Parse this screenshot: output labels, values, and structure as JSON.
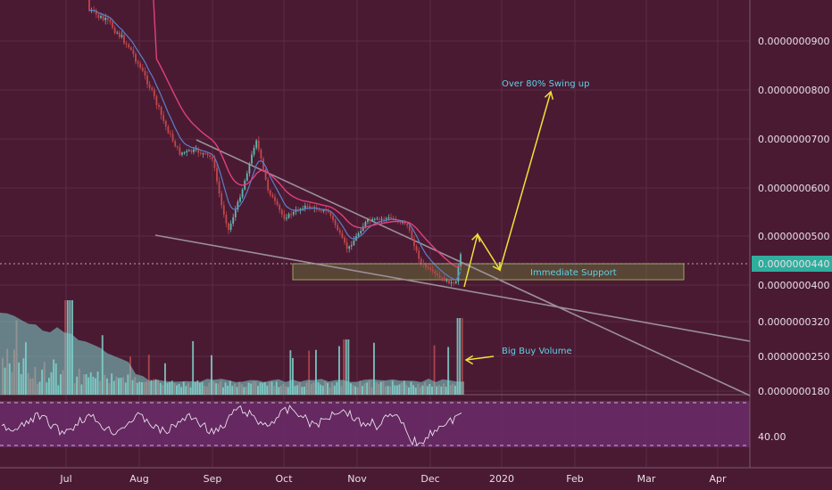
{
  "colors": {
    "background": "#4a1a33",
    "grid": "#5c2a44",
    "up": "#63b7ad",
    "down": "#c0474a",
    "volume_up": "#7fd6cd",
    "volume_down": "#b84a4e",
    "ma_fast": "#5b7fc9",
    "ma_slow": "#e0417a",
    "trendline": "#9a9098",
    "annotation": "#f1e13a",
    "annotation_text": "#5fd1e6",
    "support_box": "#6b7a3a",
    "price_badge": "#2fae9d",
    "rsi_band": "#6a2c6a"
  },
  "chart_data": {
    "type": "line",
    "x_tick_labels": [
      "Jul",
      "Aug",
      "Sep",
      "Oct",
      "Nov",
      "Dec",
      "2020",
      "Feb",
      "Mar",
      "Apr"
    ],
    "price_axis": {
      "ticks": [
        "0.0000000900",
        "0.0000000800",
        "0.0000000700",
        "0.0000000600",
        "0.0000000500",
        "0.0000000400",
        "0.0000000320",
        "0.0000000250",
        "0.0000000180"
      ],
      "scale": "log"
    },
    "current_price": "0.0000000440",
    "rsi_tick": "40.00",
    "annotations": {
      "swing": "Over 80% Swing up",
      "support": "Immediate Support",
      "volume": "Big Buy Volume"
    },
    "price_path": [
      [
        "Jul 10",
        1e-07
      ],
      [
        "Jul 20",
        9.5e-08
      ],
      [
        "Jul 28",
        8.8e-08
      ],
      [
        "Aug 5",
        7.8e-08
      ],
      [
        "Aug 12",
        6.8e-08
      ],
      [
        "Aug 18",
        6.2e-08
      ],
      [
        "Aug 25",
        6.25e-08
      ],
      [
        "Sep 1",
        6.1e-08
      ],
      [
        "Sep 5",
        5.2e-08
      ],
      [
        "Sep 8",
        4.8e-08
      ],
      [
        "Sep 14",
        5.5e-08
      ],
      [
        "Sep 20",
        6.5e-08
      ],
      [
        "Sep 25",
        5.5e-08
      ],
      [
        "Oct 1",
        5e-08
      ],
      [
        "Oct 10",
        5.2e-08
      ],
      [
        "Oct 20",
        5.1e-08
      ],
      [
        "Oct 28",
        4.5e-08
      ],
      [
        "Nov 5",
        4.95e-08
      ],
      [
        "Nov 15",
        5e-08
      ],
      [
        "Nov 22",
        4.9e-08
      ],
      [
        "Nov 28",
        4.3e-08
      ],
      [
        "Dec 5",
        4.1e-08
      ],
      [
        "Dec 12",
        4e-08
      ],
      [
        "Dec 14",
        4.45e-08
      ]
    ]
  }
}
